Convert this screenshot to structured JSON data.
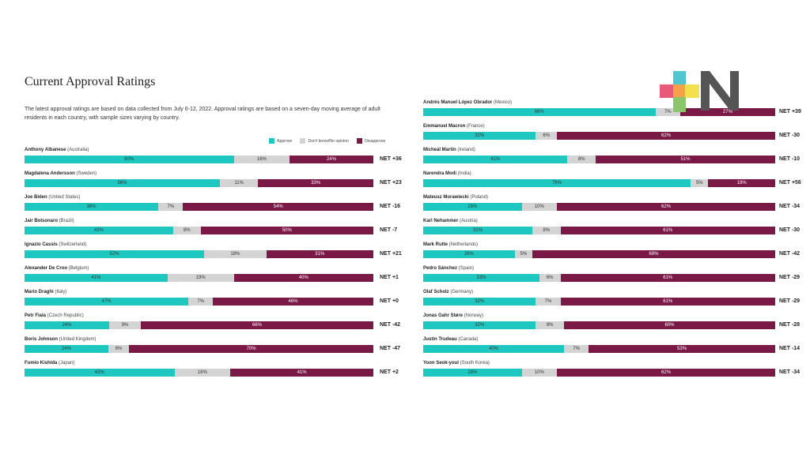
{
  "title": "Current Approval Ratings",
  "description": "The latest approval ratings are based on data collected from July 6-12, 2022. Approval ratings are based on a seven-day moving average of adult residents in each country, with sample sizes varying by country.",
  "legend": {
    "approve": "Approve",
    "dont_know": "Don't know/No opinion",
    "disapprove": "Disapprove"
  },
  "colors": {
    "approve": "#1ec8c0",
    "dont_know": "#d4d4d4",
    "disapprove": "#7a1846"
  },
  "chart_data": {
    "type": "bar",
    "orientation": "horizontal-stacked",
    "series_names": [
      "Approve",
      "Don't know/No opinion",
      "Disapprove"
    ],
    "rows": [
      {
        "name": "Anthony Albanese",
        "country": "(Australia)",
        "approve": 60,
        "dont_know": 16,
        "disapprove": 24,
        "net": "NET +36"
      },
      {
        "name": "Magdalena Andersson",
        "country": "(Sweden)",
        "approve": 56,
        "dont_know": 11,
        "disapprove": 33,
        "net": "NET +23"
      },
      {
        "name": "Joe Biden",
        "country": "(United States)",
        "approve": 38,
        "dont_know": 7,
        "disapprove": 54,
        "net": "NET -16"
      },
      {
        "name": "Jair Bolsonaro",
        "country": "(Brazil)",
        "approve": 43,
        "dont_know": 8,
        "disapprove": 50,
        "net": "NET -7"
      },
      {
        "name": "Ignazio Cassis",
        "country": "(Switzerland)",
        "approve": 52,
        "dont_know": 18,
        "disapprove": 31,
        "net": "NET +21"
      },
      {
        "name": "Alexander De Croo",
        "country": "(Belgium)",
        "approve": 41,
        "dont_know": 19,
        "disapprove": 40,
        "net": "NET +1"
      },
      {
        "name": "Mario Draghi",
        "country": "(Italy)",
        "approve": 47,
        "dont_know": 7,
        "disapprove": 46,
        "net": "NET +0"
      },
      {
        "name": "Petr Fiala",
        "country": "(Czech Republic)",
        "approve": 24,
        "dont_know": 9,
        "disapprove": 66,
        "net": "NET -42"
      },
      {
        "name": "Boris Johnson",
        "country": "(United Kingdom)",
        "approve": 24,
        "dont_know": 6,
        "disapprove": 70,
        "net": "NET -47"
      },
      {
        "name": "Fumio Kishida",
        "country": "(Japan)",
        "approve": 43,
        "dont_know": 16,
        "disapprove": 41,
        "net": "NET +2"
      },
      {
        "name": "Andrés Manuel López Obrador",
        "country": "(Mexico)",
        "approve": 66,
        "dont_know": 7,
        "disapprove": 27,
        "net": "NET +39"
      },
      {
        "name": "Emmanuel Macron",
        "country": "(France)",
        "approve": 32,
        "dont_know": 6,
        "disapprove": 62,
        "net": "NET -30"
      },
      {
        "name": "Micheál Martin",
        "country": "(Ireland)",
        "approve": 41,
        "dont_know": 8,
        "disapprove": 51,
        "net": "NET -10"
      },
      {
        "name": "Narendra Modi",
        "country": "(India)",
        "approve": 76,
        "dont_know": 5,
        "disapprove": 19,
        "net": "NET +56"
      },
      {
        "name": "Mateusz Morawiecki",
        "country": "(Poland)",
        "approve": 28,
        "dont_know": 10,
        "disapprove": 62,
        "net": "NET -34"
      },
      {
        "name": "Karl Nehammer",
        "country": "(Austria)",
        "approve": 31,
        "dont_know": 8,
        "disapprove": 61,
        "net": "NET -30"
      },
      {
        "name": "Mark Rutte",
        "country": "(Netherlands)",
        "approve": 26,
        "dont_know": 5,
        "disapprove": 69,
        "net": "NET -42"
      },
      {
        "name": "Pedro Sánchez",
        "country": "(Spain)",
        "approve": 33,
        "dont_know": 6,
        "disapprove": 61,
        "net": "NET -29"
      },
      {
        "name": "Olaf Scholz",
        "country": "(Germany)",
        "approve": 32,
        "dont_know": 7,
        "disapprove": 61,
        "net": "NET -29"
      },
      {
        "name": "Jonas Gahr Støre",
        "country": "(Norway)",
        "approve": 32,
        "dont_know": 8,
        "disapprove": 60,
        "net": "NET -28"
      },
      {
        "name": "Justin Trudeau",
        "country": "(Canada)",
        "approve": 40,
        "dont_know": 7,
        "disapprove": 53,
        "net": "NET -14"
      },
      {
        "name": "Yoon Seok-youl",
        "country": "(South Korea)",
        "approve": 28,
        "dont_know": 10,
        "disapprove": 62,
        "net": "NET -34"
      }
    ]
  },
  "logo": {
    "name": "plus-n-logo",
    "colors": [
      "#4fc6d0",
      "#e85a7a",
      "#f5a04a",
      "#f3e04c",
      "#8cc56a",
      "#555555"
    ]
  }
}
